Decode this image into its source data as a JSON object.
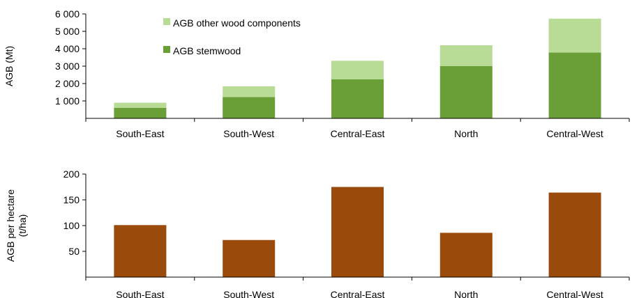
{
  "chart_data": [
    {
      "type": "bar",
      "stacked": true,
      "categories": [
        "South-East",
        "South-West",
        "Central-East",
        "North",
        "Central-West"
      ],
      "series": [
        {
          "name": "AGB stemwood",
          "color": "#6a9e36",
          "values": [
            600,
            1230,
            2250,
            3000,
            3780
          ]
        },
        {
          "name": "AGB other wood components",
          "color": "#b8dc96",
          "values": [
            300,
            610,
            1060,
            1200,
            1950
          ]
        }
      ],
      "ylabel": "AGB (Mt)",
      "yticks": [
        1000,
        2000,
        3000,
        4000,
        5000,
        6000
      ],
      "ytick_labels": [
        "1 000",
        "2 000",
        "3 000",
        "4 000",
        "5 000",
        "6 000"
      ],
      "ylim": [
        0,
        6000
      ],
      "grid": false,
      "legend_position": "top-left"
    },
    {
      "type": "bar",
      "categories": [
        "South-East",
        "South-West",
        "Central-East",
        "North",
        "Central-West"
      ],
      "series": [
        {
          "color": "#9a4a0a",
          "values": [
            101,
            72,
            175,
            86,
            164
          ]
        }
      ],
      "ylabel_lines": [
        "AGB per hectare",
        "(t/ha)"
      ],
      "yticks": [
        50,
        100,
        150,
        200
      ],
      "ytick_labels": [
        "50",
        "100",
        "150",
        "200"
      ],
      "ylim": [
        0,
        200
      ],
      "grid": false
    }
  ]
}
